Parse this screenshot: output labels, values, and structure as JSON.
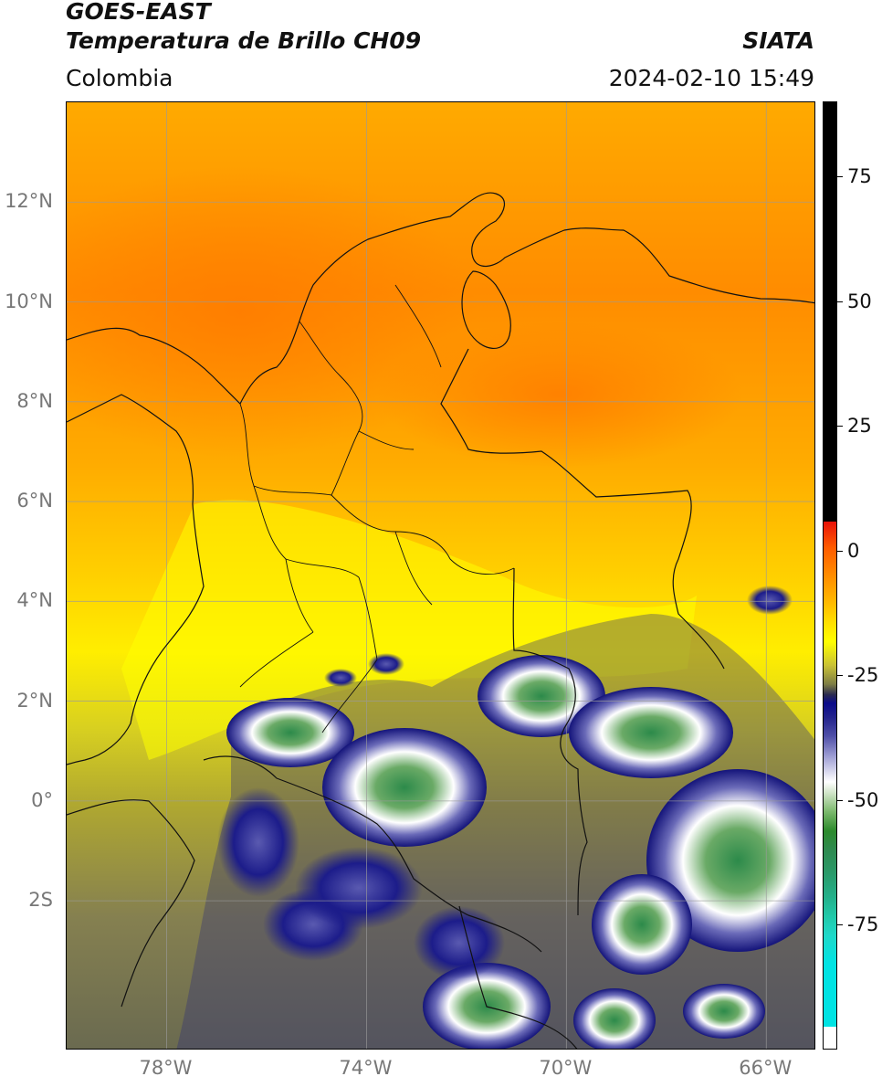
{
  "header": {
    "title_line1": "GOES-EAST",
    "title_line2": "Temperatura de Brillo CH09",
    "organization": "SIATA",
    "region": "Colombia",
    "timestamp": "2024-02-10 15:49"
  },
  "map": {
    "latitude_labels": [
      "12°N",
      "10°N",
      "8°N",
      "6°N",
      "4°N",
      "2°N",
      "0°",
      "2S"
    ],
    "latitude_values": [
      12,
      10,
      8,
      6,
      4,
      2,
      0,
      -2
    ],
    "longitude_labels": [
      "78°W",
      "74°W",
      "70°W",
      "66°W"
    ],
    "longitude_values": [
      -78,
      -74,
      -70,
      -66
    ],
    "extent": {
      "lon_min": -80,
      "lon_max": -65,
      "lat_min": -5,
      "lat_max": 14
    }
  },
  "colorbar": {
    "tick_labels": [
      "75",
      "50",
      "25",
      "0",
      "-25",
      "-50",
      "-75"
    ],
    "tick_values": [
      75,
      50,
      25,
      0,
      -25,
      -50,
      -75
    ],
    "range": [
      -100,
      90
    ],
    "colors": {
      "warm_cutoff": "#000000",
      "hot": "#ff5a00",
      "mild": "#ffff00",
      "cold": "#0a0a8a",
      "very_cold": "#ffffff",
      "extreme_cold": "#2c8a2c",
      "coldest": "#00e3e3"
    }
  }
}
